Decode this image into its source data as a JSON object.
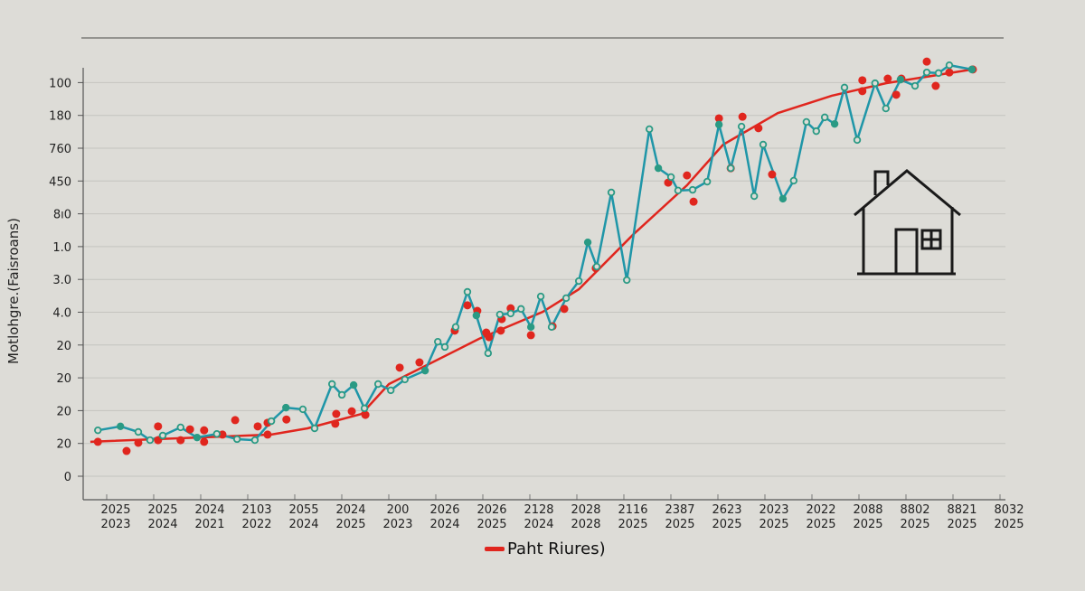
{
  "chart_data": {
    "type": "line",
    "title": "",
    "ylabel": "Motlohgre.(Faisroans)",
    "xlabel": "",
    "xlim": [
      -0.7,
      19.2
    ],
    "ylim": [
      -0.7,
      12.7
    ],
    "grid": true,
    "y_tick_labels": [
      "0",
      "20",
      "20",
      "20",
      "20",
      "4.0",
      "3.0",
      "1.0",
      "8ı0",
      "450",
      "760",
      "180",
      "100"
    ],
    "x_tick_labels": [
      [
        "2025",
        "2023"
      ],
      [
        "2025",
        "2024"
      ],
      [
        "2024",
        "2021"
      ],
      [
        "2103",
        "2022"
      ],
      [
        "2055",
        "2024"
      ],
      [
        "2024",
        "2025"
      ],
      [
        "200",
        "2023"
      ],
      [
        "2026",
        "2024"
      ],
      [
        "2026",
        "2025"
      ],
      [
        "2128",
        "2024"
      ],
      [
        "2028",
        "2028"
      ],
      [
        "2116",
        "2025"
      ],
      [
        "2387",
        "2025"
      ],
      [
        "2623",
        "2025"
      ],
      [
        "2023",
        "2025"
      ],
      [
        "2022",
        "2025"
      ],
      [
        "2088",
        "2025"
      ],
      [
        "8802",
        "2025"
      ],
      [
        "8821",
        "2025"
      ],
      [
        "8032",
        "2025"
      ]
    ],
    "legend": {
      "label": "Paht Riures)",
      "placement": "bottom-center"
    },
    "colors": {
      "teal": "#1f96a8",
      "teal_marker": "#2a9a84",
      "red": "#e0261e",
      "grid": "#c4c4bf",
      "axis": "#555555"
    },
    "series": [
      {
        "name": "teal-series",
        "points": [
          [
            -0.38,
            1.4
          ],
          [
            0.1,
            1.52
          ],
          [
            0.48,
            1.35
          ],
          [
            0.73,
            1.1
          ],
          [
            1.0,
            1.24
          ],
          [
            1.38,
            1.49
          ],
          [
            1.73,
            1.18
          ],
          [
            2.15,
            1.29
          ],
          [
            2.58,
            1.13
          ],
          [
            2.96,
            1.1
          ],
          [
            3.31,
            1.68
          ],
          [
            3.62,
            2.09
          ],
          [
            3.98,
            2.04
          ],
          [
            4.23,
            1.46
          ],
          [
            4.6,
            2.81
          ],
          [
            4.81,
            2.48
          ],
          [
            5.06,
            2.78
          ],
          [
            5.29,
            2.07
          ],
          [
            5.58,
            2.81
          ],
          [
            5.85,
            2.62
          ],
          [
            6.15,
            2.95
          ],
          [
            6.58,
            3.22
          ],
          [
            6.85,
            4.1
          ],
          [
            7.0,
            3.94
          ],
          [
            7.23,
            4.55
          ],
          [
            7.48,
            5.62
          ],
          [
            7.67,
            4.9
          ],
          [
            7.92,
            3.75
          ],
          [
            8.17,
            4.93
          ],
          [
            8.4,
            4.96
          ],
          [
            8.62,
            5.1
          ],
          [
            8.83,
            4.55
          ],
          [
            9.04,
            5.48
          ],
          [
            9.27,
            4.55
          ],
          [
            9.58,
            5.43
          ],
          [
            9.85,
            5.95
          ],
          [
            10.04,
            7.13
          ],
          [
            10.23,
            6.39
          ],
          [
            10.54,
            8.65
          ],
          [
            10.87,
            5.98
          ],
          [
            11.35,
            10.58
          ],
          [
            11.54,
            9.39
          ],
          [
            11.81,
            9.12
          ],
          [
            11.96,
            8.71
          ],
          [
            12.27,
            8.73
          ],
          [
            12.58,
            8.98
          ],
          [
            12.83,
            10.72
          ],
          [
            13.08,
            9.39
          ],
          [
            13.31,
            10.66
          ],
          [
            13.58,
            8.54
          ],
          [
            13.77,
            10.11
          ],
          [
            14.19,
            8.46
          ],
          [
            14.42,
            9.01
          ],
          [
            14.69,
            10.8
          ],
          [
            14.9,
            10.52
          ],
          [
            15.08,
            10.94
          ],
          [
            15.29,
            10.74
          ],
          [
            15.5,
            11.85
          ],
          [
            15.77,
            10.25
          ],
          [
            16.15,
            11.98
          ],
          [
            16.38,
            11.21
          ],
          [
            16.69,
            12.09
          ],
          [
            17.0,
            11.9
          ],
          [
            17.25,
            12.31
          ],
          [
            17.5,
            12.29
          ],
          [
            17.73,
            12.53
          ],
          [
            18.21,
            12.4
          ]
        ]
      },
      {
        "name": "Paht Riures)",
        "trend": [
          [
            -0.54,
            1.05
          ],
          [
            3.31,
            1.27
          ],
          [
            4.08,
            1.46
          ],
          [
            5.23,
            1.9
          ],
          [
            5.81,
            2.81
          ],
          [
            6.58,
            3.36
          ],
          [
            7.73,
            4.19
          ],
          [
            9.08,
            5.01
          ],
          [
            9.85,
            5.7
          ],
          [
            11.0,
            7.36
          ],
          [
            12.15,
            8.87
          ],
          [
            12.92,
            10.11
          ],
          [
            14.08,
            11.07
          ],
          [
            15.23,
            11.6
          ],
          [
            16.38,
            11.98
          ],
          [
            18.21,
            12.4
          ]
        ],
        "points": [
          [
            -0.38,
            1.05
          ],
          [
            0.23,
            0.77
          ],
          [
            0.48,
            1.02
          ],
          [
            0.9,
            1.52
          ],
          [
            0.9,
            1.1
          ],
          [
            1.38,
            1.1
          ],
          [
            1.58,
            1.43
          ],
          [
            1.88,
            1.4
          ],
          [
            1.88,
            1.05
          ],
          [
            2.27,
            1.27
          ],
          [
            2.54,
            1.71
          ],
          [
            3.02,
            1.52
          ],
          [
            3.23,
            1.63
          ],
          [
            3.23,
            1.27
          ],
          [
            3.63,
            1.73
          ],
          [
            4.67,
            1.6
          ],
          [
            4.69,
            1.9
          ],
          [
            5.02,
            1.98
          ],
          [
            5.31,
            1.87
          ],
          [
            6.04,
            3.31
          ],
          [
            6.46,
            3.47
          ],
          [
            7.21,
            4.44
          ],
          [
            7.48,
            5.21
          ],
          [
            7.69,
            5.04
          ],
          [
            7.88,
            4.38
          ],
          [
            7.94,
            4.24
          ],
          [
            8.19,
            4.44
          ],
          [
            8.21,
            4.79
          ],
          [
            8.4,
            5.12
          ],
          [
            8.83,
            4.3
          ],
          [
            9.29,
            4.57
          ],
          [
            9.54,
            5.1
          ],
          [
            10.21,
            6.34
          ],
          [
            11.75,
            8.95
          ],
          [
            12.15,
            9.17
          ],
          [
            12.29,
            8.37
          ],
          [
            12.83,
            10.91
          ],
          [
            13.08,
            9.39
          ],
          [
            13.33,
            10.96
          ],
          [
            13.67,
            10.61
          ],
          [
            13.96,
            9.2
          ],
          [
            15.88,
            12.07
          ],
          [
            15.88,
            11.74
          ],
          [
            16.42,
            12.12
          ],
          [
            16.6,
            11.63
          ],
          [
            16.71,
            12.12
          ],
          [
            17.25,
            12.64
          ],
          [
            17.44,
            11.9
          ],
          [
            17.73,
            12.31
          ],
          [
            18.23,
            12.4
          ]
        ]
      }
    ]
  }
}
